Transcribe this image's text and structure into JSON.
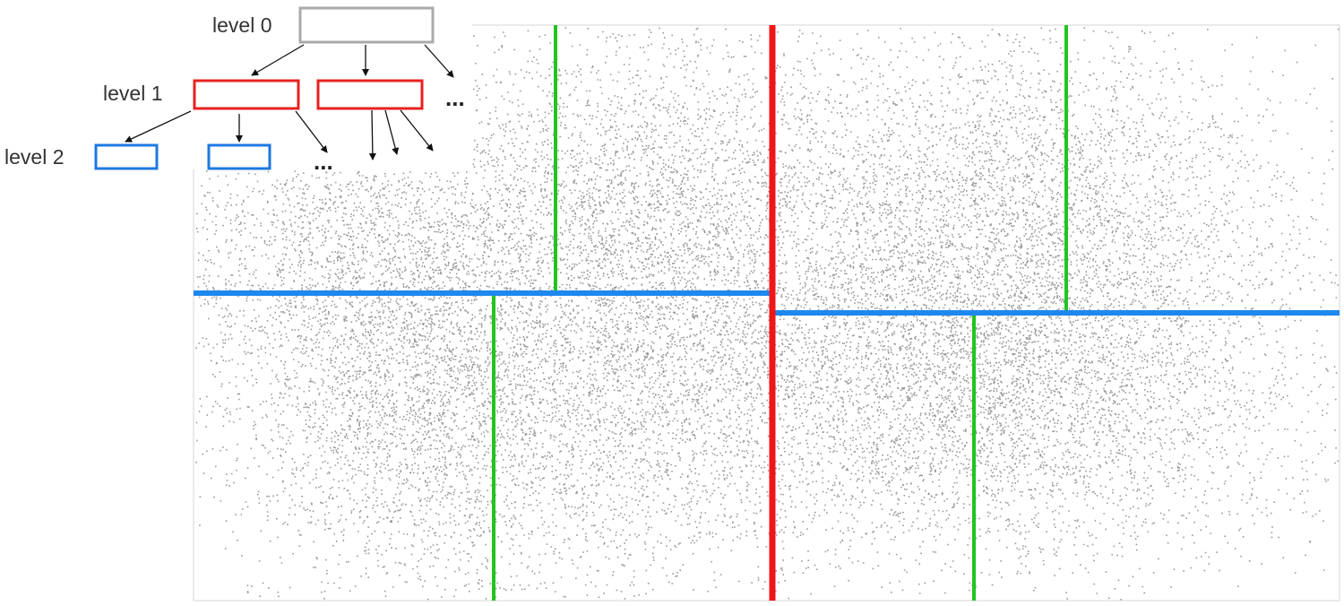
{
  "tree": {
    "levels": [
      "level 0",
      "level 1",
      "level 2"
    ],
    "ellipses": [
      "...",
      "...",
      "..."
    ]
  }
}
